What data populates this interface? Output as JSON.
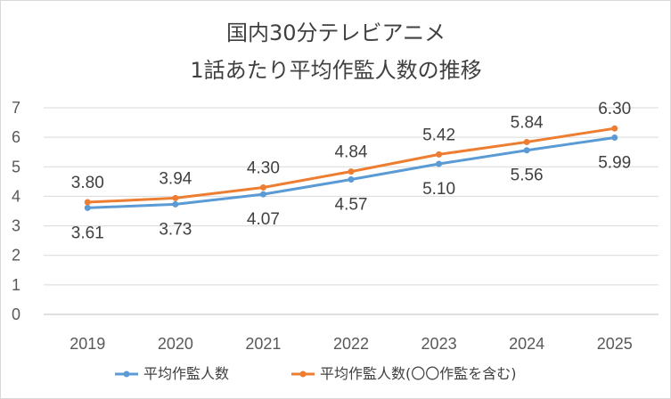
{
  "chart_data": {
    "type": "line",
    "title_line1": "国内30分テレビアニメ",
    "title_line2": "1話あたり平均作監人数の推移",
    "x": [
      "2019",
      "2020",
      "2021",
      "2022",
      "2023",
      "2024",
      "2025"
    ],
    "ylim": [
      0,
      7
    ],
    "yticks": [
      "0",
      "1",
      "2",
      "3",
      "4",
      "5",
      "6",
      "7"
    ],
    "grid": true,
    "legend_position": "bottom",
    "series": [
      {
        "name": "平均作監人数",
        "color": "#5B9BD5",
        "values": [
          3.61,
          3.73,
          4.07,
          4.57,
          5.1,
          5.56,
          5.99
        ],
        "labels": [
          "3.61",
          "3.73",
          "4.07",
          "4.57",
          "5.10",
          "5.56",
          "5.99"
        ],
        "label_position": "below"
      },
      {
        "name": "平均作監人数(〇〇作監を含む)",
        "color": "#ED7D31",
        "values": [
          3.8,
          3.94,
          4.3,
          4.84,
          5.42,
          5.84,
          6.3
        ],
        "labels": [
          "3.80",
          "3.94",
          "4.30",
          "4.84",
          "5.42",
          "5.84",
          "6.30"
        ],
        "label_position": "above"
      }
    ]
  }
}
